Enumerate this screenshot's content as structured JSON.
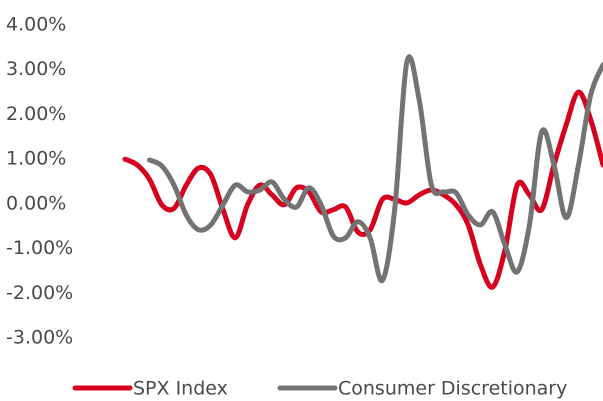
{
  "chart_data": {
    "type": "line",
    "categories": [
      null,
      null,
      null,
      null,
      null,
      null,
      null,
      null,
      null,
      null,
      null,
      null,
      null,
      null,
      null,
      null,
      null,
      null,
      null,
      null,
      null,
      null,
      null,
      null,
      null,
      null,
      null,
      null,
      null,
      null,
      null,
      null,
      null,
      null,
      null,
      null,
      null,
      null,
      null,
      null
    ],
    "series": [
      {
        "name": "SPX Index",
        "color": "#d7001e",
        "values": [
          1.0,
          0.87,
          0.55,
          -0.02,
          -0.1,
          0.42,
          0.8,
          0.65,
          -0.13,
          -0.76,
          -0.02,
          0.42,
          0.2,
          -0.02,
          0.36,
          0.27,
          -0.18,
          -0.13,
          -0.07,
          -0.63,
          -0.58,
          0.1,
          0.1,
          0.02,
          0.2,
          0.31,
          0.2,
          -0.02,
          -0.47,
          -1.36,
          -1.86,
          -1.03,
          0.42,
          0.2,
          -0.13,
          0.87,
          1.77,
          2.5,
          1.88,
          0.87
        ]
      },
      {
        "name": "Consumer Discretionary",
        "color": "#737373",
        "values": [
          null,
          null,
          0.98,
          0.85,
          0.42,
          -0.25,
          -0.58,
          -0.47,
          -0.02,
          0.42,
          0.27,
          0.31,
          0.49,
          0.1,
          -0.07,
          0.36,
          -0.02,
          -0.72,
          -0.76,
          -0.4,
          -0.76,
          -1.71,
          -0.13,
          3.18,
          2.33,
          0.42,
          0.27,
          0.25,
          -0.25,
          -0.47,
          -0.18,
          -0.92,
          -1.52,
          -0.47,
          1.61,
          0.87,
          -0.31,
          0.87,
          2.44,
          3.11
        ]
      }
    ],
    "ylim": [
      -3,
      4
    ],
    "yticks": [
      {
        "value": 4,
        "label": "4.00%"
      },
      {
        "value": 3,
        "label": "3.00%"
      },
      {
        "value": 2,
        "label": "2.00%"
      },
      {
        "value": 1,
        "label": "1.00%"
      },
      {
        "value": 0,
        "label": "0.00%"
      },
      {
        "value": -1,
        "label": "-1.00%"
      },
      {
        "value": -2,
        "label": "-2.00%"
      },
      {
        "value": -3,
        "label": "-3.00%"
      }
    ],
    "grid": false,
    "legend": "bottom"
  }
}
